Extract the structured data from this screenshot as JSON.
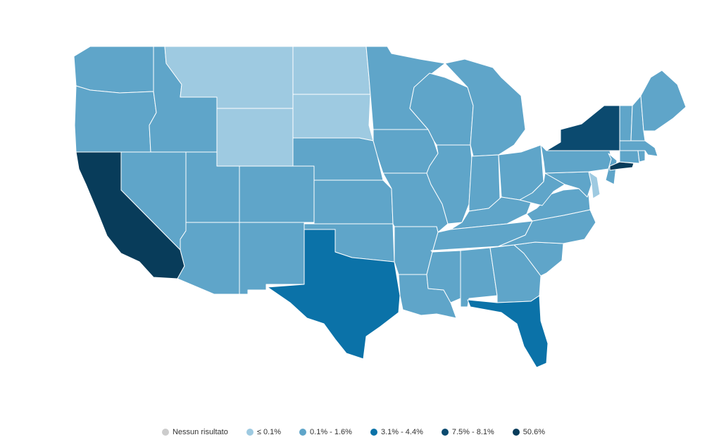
{
  "map": {
    "region": "United States (contiguous)",
    "legend": [
      {
        "label": "Nessun risultato",
        "color": "#cccccc"
      },
      {
        "label": "≤ 0.1%",
        "color": "#9ecae1"
      },
      {
        "label": "0.1% - 1.6%",
        "color": "#5fa5c9"
      },
      {
        "label": "3.1% - 4.4%",
        "color": "#0b72a8"
      },
      {
        "label": "7.5% - 8.1%",
        "color": "#0b4a6f"
      },
      {
        "label": "50.6%",
        "color": "#083c5a"
      }
    ],
    "states": {
      "WA": "0.1% - 1.6%",
      "OR": "0.1% - 1.6%",
      "CA": "50.6%",
      "NV": "0.1% - 1.6%",
      "ID": "0.1% - 1.6%",
      "MT": "≤ 0.1%",
      "WY": "≤ 0.1%",
      "UT": "0.1% - 1.6%",
      "AZ": "0.1% - 1.6%",
      "CO": "0.1% - 1.6%",
      "NM": "0.1% - 1.6%",
      "ND": "≤ 0.1%",
      "SD": "≤ 0.1%",
      "NE": "0.1% - 1.6%",
      "KS": "0.1% - 1.6%",
      "OK": "0.1% - 1.6%",
      "TX": "3.1% - 4.4%",
      "MN": "0.1% - 1.6%",
      "IA": "0.1% - 1.6%",
      "MO": "0.1% - 1.6%",
      "AR": "0.1% - 1.6%",
      "LA": "0.1% - 1.6%",
      "WI": "0.1% - 1.6%",
      "IL": "0.1% - 1.6%",
      "MI": "0.1% - 1.6%",
      "IN": "0.1% - 1.6%",
      "OH": "0.1% - 1.6%",
      "KY": "0.1% - 1.6%",
      "TN": "0.1% - 1.6%",
      "MS": "0.1% - 1.6%",
      "AL": "0.1% - 1.6%",
      "GA": "0.1% - 1.6%",
      "FL": "3.1% - 4.4%",
      "SC": "0.1% - 1.6%",
      "NC": "0.1% - 1.6%",
      "VA": "0.1% - 1.6%",
      "WV": "0.1% - 1.6%",
      "PA": "0.1% - 1.6%",
      "NY": "7.5% - 8.1%",
      "NJ": "0.1% - 1.6%",
      "DE": "≤ 0.1%",
      "MD": "0.1% - 1.6%",
      "CT": "0.1% - 1.6%",
      "RI": "0.1% - 1.6%",
      "MA": "0.1% - 1.6%",
      "VT": "0.1% - 1.6%",
      "NH": "0.1% - 1.6%",
      "ME": "0.1% - 1.6%",
      "NYC": "50.6%"
    }
  }
}
